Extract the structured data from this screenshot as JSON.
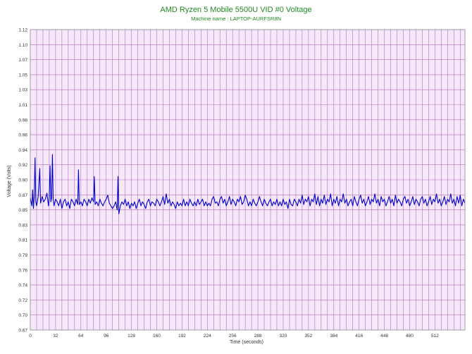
{
  "chart_data": {
    "type": "line",
    "title": "AMD Ryzen 5 Mobile 5500U VID #0 Voltage",
    "subtitle": "Machine name : LAPTOP-AURFSR8N",
    "xlabel": "Time (seconds)",
    "ylabel": "Voltage (Volts)",
    "xlim": [
      0,
      550
    ],
    "ylim": [
      0.67,
      1.12
    ],
    "x_ticks": [
      0,
      32,
      64,
      96,
      128,
      160,
      192,
      224,
      256,
      288,
      320,
      352,
      384,
      416,
      448,
      480,
      512
    ],
    "y_ticks": [
      "0.67",
      "0.70",
      "0.72",
      "0.74",
      "0.76",
      "0.79",
      "0.81",
      "0.83",
      "0.85",
      "0.87",
      "0.90",
      "0.92",
      "0.94",
      "0.96",
      "0.98",
      "1.01",
      "1.03",
      "1.05",
      "1.07",
      "1.10",
      "1.12"
    ],
    "grid": true,
    "series": [
      {
        "color": "#0000cc",
        "points": [
          [
            0,
            0.868
          ],
          [
            2,
            0.856
          ],
          [
            3,
            0.88
          ],
          [
            4,
            0.852
          ],
          [
            5,
            0.87
          ],
          [
            6,
            0.928
          ],
          [
            7,
            0.862
          ],
          [
            8,
            0.856
          ],
          [
            10,
            0.87
          ],
          [
            12,
            0.912
          ],
          [
            13,
            0.86
          ],
          [
            15,
            0.87
          ],
          [
            17,
            0.862
          ],
          [
            19,
            0.866
          ],
          [
            21,
            0.875
          ],
          [
            23,
            0.856
          ],
          [
            24,
            0.87
          ],
          [
            25,
            0.916
          ],
          [
            26,
            0.862
          ],
          [
            27,
            0.868
          ],
          [
            28,
            0.933
          ],
          [
            29,
            0.866
          ],
          [
            30,
            0.856
          ],
          [
            32,
            0.866
          ],
          [
            34,
            0.862
          ],
          [
            36,
            0.856
          ],
          [
            38,
            0.866
          ],
          [
            40,
            0.852
          ],
          [
            42,
            0.862
          ],
          [
            44,
            0.866
          ],
          [
            46,
            0.856
          ],
          [
            48,
            0.862
          ],
          [
            50,
            0.852
          ],
          [
            52,
            0.866
          ],
          [
            54,
            0.862
          ],
          [
            56,
            0.856
          ],
          [
            58,
            0.866
          ],
          [
            60,
            0.858
          ],
          [
            61,
            0.91
          ],
          [
            62,
            0.858
          ],
          [
            64,
            0.862
          ],
          [
            66,
            0.856
          ],
          [
            68,
            0.866
          ],
          [
            70,
            0.862
          ],
          [
            72,
            0.856
          ],
          [
            74,
            0.866
          ],
          [
            76,
            0.86
          ],
          [
            78,
            0.868
          ],
          [
            80,
            0.862
          ],
          [
            81,
            0.9
          ],
          [
            82,
            0.858
          ],
          [
            84,
            0.862
          ],
          [
            86,
            0.856
          ],
          [
            88,
            0.866
          ],
          [
            90,
            0.86
          ],
          [
            92,
            0.856
          ],
          [
            94,
            0.862
          ],
          [
            96,
            0.866
          ],
          [
            98,
            0.872
          ],
          [
            100,
            0.86
          ],
          [
            102,
            0.856
          ],
          [
            104,
            0.852
          ],
          [
            106,
            0.856
          ],
          [
            108,
            0.862
          ],
          [
            110,
            0.85
          ],
          [
            111,
            0.9
          ],
          [
            112,
            0.844
          ],
          [
            114,
            0.856
          ],
          [
            116,
            0.862
          ],
          [
            118,
            0.858
          ],
          [
            120,
            0.866
          ],
          [
            122,
            0.856
          ],
          [
            124,
            0.862
          ],
          [
            126,
            0.852
          ],
          [
            128,
            0.86
          ],
          [
            130,
            0.856
          ],
          [
            132,
            0.862
          ],
          [
            134,
            0.852
          ],
          [
            136,
            0.86
          ],
          [
            138,
            0.866
          ],
          [
            140,
            0.856
          ],
          [
            142,
            0.862
          ],
          [
            144,
            0.858
          ],
          [
            146,
            0.852
          ],
          [
            148,
            0.862
          ],
          [
            150,
            0.866
          ],
          [
            152,
            0.856
          ],
          [
            154,
            0.862
          ],
          [
            156,
            0.86
          ],
          [
            158,
            0.856
          ],
          [
            160,
            0.866
          ],
          [
            162,
            0.862
          ],
          [
            164,
            0.856
          ],
          [
            166,
            0.862
          ],
          [
            168,
            0.87
          ],
          [
            170,
            0.858
          ],
          [
            172,
            0.874
          ],
          [
            174,
            0.86
          ],
          [
            176,
            0.866
          ],
          [
            178,
            0.856
          ],
          [
            180,
            0.862
          ],
          [
            182,
            0.858
          ],
          [
            184,
            0.852
          ],
          [
            186,
            0.862
          ],
          [
            188,
            0.856
          ],
          [
            190,
            0.86
          ],
          [
            192,
            0.856
          ],
          [
            194,
            0.866
          ],
          [
            196,
            0.856
          ],
          [
            198,
            0.862
          ],
          [
            200,
            0.856
          ],
          [
            202,
            0.866
          ],
          [
            204,
            0.86
          ],
          [
            206,
            0.856
          ],
          [
            208,
            0.862
          ],
          [
            210,
            0.856
          ],
          [
            212,
            0.866
          ],
          [
            214,
            0.858
          ],
          [
            216,
            0.862
          ],
          [
            218,
            0.866
          ],
          [
            220,
            0.856
          ],
          [
            222,
            0.862
          ],
          [
            224,
            0.856
          ],
          [
            226,
            0.86
          ],
          [
            228,
            0.856
          ],
          [
            230,
            0.866
          ],
          [
            232,
            0.87
          ],
          [
            234,
            0.86
          ],
          [
            236,
            0.862
          ],
          [
            238,
            0.856
          ],
          [
            240,
            0.866
          ],
          [
            242,
            0.87
          ],
          [
            244,
            0.86
          ],
          [
            246,
            0.866
          ],
          [
            248,
            0.856
          ],
          [
            250,
            0.862
          ],
          [
            252,
            0.87
          ],
          [
            254,
            0.858
          ],
          [
            256,
            0.866
          ],
          [
            258,
            0.862
          ],
          [
            260,
            0.856
          ],
          [
            262,
            0.866
          ],
          [
            264,
            0.862
          ],
          [
            266,
            0.87
          ],
          [
            268,
            0.858
          ],
          [
            270,
            0.862
          ],
          [
            272,
            0.872
          ],
          [
            274,
            0.866
          ],
          [
            276,
            0.856
          ],
          [
            278,
            0.862
          ],
          [
            280,
            0.856
          ],
          [
            282,
            0.866
          ],
          [
            284,
            0.86
          ],
          [
            286,
            0.856
          ],
          [
            288,
            0.862
          ],
          [
            290,
            0.87
          ],
          [
            292,
            0.862
          ],
          [
            294,
            0.856
          ],
          [
            296,
            0.866
          ],
          [
            298,
            0.86
          ],
          [
            300,
            0.856
          ],
          [
            302,
            0.862
          ],
          [
            304,
            0.866
          ],
          [
            306,
            0.856
          ],
          [
            308,
            0.862
          ],
          [
            310,
            0.858
          ],
          [
            312,
            0.866
          ],
          [
            314,
            0.856
          ],
          [
            316,
            0.862
          ],
          [
            318,
            0.856
          ],
          [
            320,
            0.866
          ],
          [
            322,
            0.858
          ],
          [
            324,
            0.862
          ],
          [
            326,
            0.852
          ],
          [
            328,
            0.866
          ],
          [
            330,
            0.858
          ],
          [
            332,
            0.856
          ],
          [
            334,
            0.866
          ],
          [
            336,
            0.862
          ],
          [
            338,
            0.856
          ],
          [
            340,
            0.866
          ],
          [
            342,
            0.86
          ],
          [
            344,
            0.872
          ],
          [
            346,
            0.858
          ],
          [
            348,
            0.866
          ],
          [
            350,
            0.862
          ],
          [
            352,
            0.87
          ],
          [
            354,
            0.856
          ],
          [
            356,
            0.866
          ],
          [
            358,
            0.862
          ],
          [
            360,
            0.874
          ],
          [
            362,
            0.858
          ],
          [
            364,
            0.87
          ],
          [
            366,
            0.856
          ],
          [
            368,
            0.866
          ],
          [
            370,
            0.86
          ],
          [
            372,
            0.872
          ],
          [
            374,
            0.858
          ],
          [
            376,
            0.866
          ],
          [
            378,
            0.862
          ],
          [
            380,
            0.874
          ],
          [
            382,
            0.856
          ],
          [
            384,
            0.866
          ],
          [
            386,
            0.86
          ],
          [
            388,
            0.87
          ],
          [
            390,
            0.856
          ],
          [
            392,
            0.866
          ],
          [
            394,
            0.862
          ],
          [
            396,
            0.874
          ],
          [
            398,
            0.86
          ],
          [
            400,
            0.866
          ],
          [
            402,
            0.856
          ],
          [
            404,
            0.862
          ],
          [
            406,
            0.866
          ],
          [
            408,
            0.856
          ],
          [
            410,
            0.87
          ],
          [
            412,
            0.862
          ],
          [
            414,
            0.856
          ],
          [
            416,
            0.866
          ],
          [
            418,
            0.872
          ],
          [
            420,
            0.86
          ],
          [
            422,
            0.866
          ],
          [
            424,
            0.856
          ],
          [
            426,
            0.862
          ],
          [
            428,
            0.87
          ],
          [
            430,
            0.858
          ],
          [
            432,
            0.866
          ],
          [
            434,
            0.862
          ],
          [
            436,
            0.874
          ],
          [
            438,
            0.86
          ],
          [
            440,
            0.866
          ],
          [
            442,
            0.856
          ],
          [
            444,
            0.87
          ],
          [
            446,
            0.862
          ],
          [
            448,
            0.866
          ],
          [
            450,
            0.856
          ],
          [
            452,
            0.862
          ],
          [
            454,
            0.87
          ],
          [
            456,
            0.86
          ],
          [
            458,
            0.866
          ],
          [
            460,
            0.856
          ],
          [
            462,
            0.872
          ],
          [
            464,
            0.86
          ],
          [
            466,
            0.866
          ],
          [
            468,
            0.862
          ],
          [
            470,
            0.856
          ],
          [
            472,
            0.866
          ],
          [
            474,
            0.87
          ],
          [
            476,
            0.86
          ],
          [
            478,
            0.866
          ],
          [
            480,
            0.856
          ],
          [
            482,
            0.862
          ],
          [
            484,
            0.87
          ],
          [
            486,
            0.858
          ],
          [
            488,
            0.866
          ],
          [
            490,
            0.862
          ],
          [
            492,
            0.856
          ],
          [
            494,
            0.866
          ],
          [
            496,
            0.87
          ],
          [
            498,
            0.86
          ],
          [
            500,
            0.866
          ],
          [
            502,
            0.856
          ],
          [
            504,
            0.862
          ],
          [
            506,
            0.87
          ],
          [
            508,
            0.858
          ],
          [
            510,
            0.866
          ],
          [
            512,
            0.862
          ],
          [
            514,
            0.874
          ],
          [
            516,
            0.86
          ],
          [
            518,
            0.866
          ],
          [
            520,
            0.856
          ],
          [
            522,
            0.862
          ],
          [
            524,
            0.87
          ],
          [
            526,
            0.858
          ],
          [
            528,
            0.866
          ],
          [
            530,
            0.862
          ],
          [
            532,
            0.874
          ],
          [
            534,
            0.86
          ],
          [
            536,
            0.866
          ],
          [
            538,
            0.856
          ],
          [
            540,
            0.87
          ],
          [
            542,
            0.86
          ],
          [
            544,
            0.872
          ],
          [
            546,
            0.856
          ],
          [
            548,
            0.866
          ],
          [
            550,
            0.86
          ]
        ]
      }
    ]
  },
  "colors": {
    "title": "#1f8a1f",
    "plot_background": "#f6e8fa",
    "grid": "#b070b8",
    "axis_text": "#333333",
    "line": "#0000cc"
  }
}
